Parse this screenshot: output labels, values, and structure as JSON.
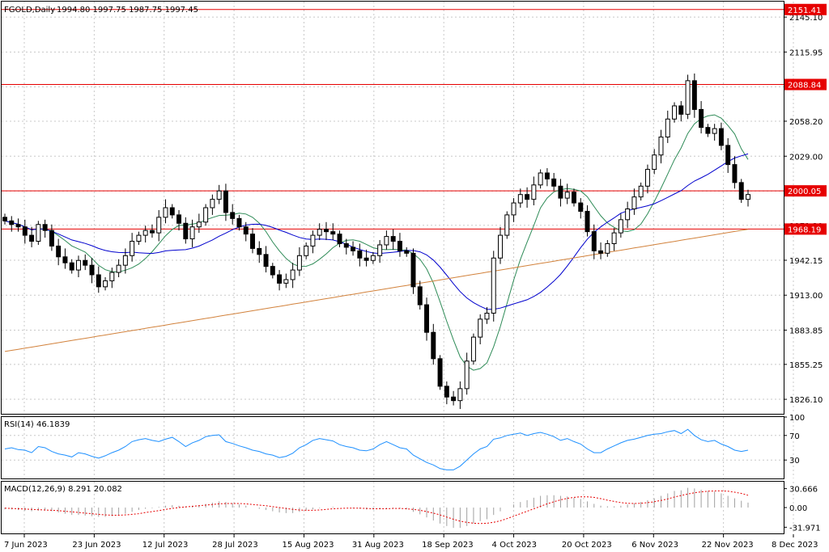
{
  "title": "FGOLD,Daily",
  "ohlc_text": "1994.80 1997.75 1987.75 1997.45",
  "rsi_label": "RSI(14) 46.1839",
  "macd_label": "MACD(12,26,9) 8.291 20.082",
  "colors": {
    "background": "#ffffff",
    "grid": "#c8c8c8",
    "candle": "#000000",
    "level_line": "#e60000",
    "level_tag": "#e60000",
    "ma_fast": "#2e8b57",
    "ma_mid": "#0000cd",
    "ma_slow": "#d2823c",
    "rsi": "#1e90ff",
    "macd_signal": "#e60000",
    "macd_hist": "#a0a0a0"
  },
  "chart_data": [
    {
      "type": "candlestick",
      "panel": "price",
      "title": "FGOLD,Daily",
      "x_labels": [
        "7 Jun 2023",
        "23 Jun 2023",
        "12 Jul 2023",
        "28 Jul 2023",
        "15 Aug 2023",
        "31 Aug 2023",
        "18 Sep 2023",
        "4 Oct 2023",
        "20 Oct 2023",
        "6 Nov 2023",
        "22 Nov 2023",
        "8 Dec 2023"
      ],
      "y_ticks": [
        1826.1,
        1855.25,
        1883.85,
        1913.0,
        1942.15,
        1971.3,
        1999.9,
        2029.0,
        2058.2,
        2086.8,
        2115.95,
        2145.1
      ],
      "ylim": [
        1814,
        2158
      ],
      "levels": [
        2151.41,
        2088.84,
        2000.05,
        1968.19
      ],
      "close": [
        1975,
        1972,
        1970,
        1963,
        1958,
        1972,
        1967,
        1954,
        1945,
        1940,
        1934,
        1942,
        1938,
        1930,
        1920,
        1925,
        1932,
        1938,
        1946,
        1958,
        1963,
        1967,
        1965,
        1978,
        1986,
        1980,
        1973,
        1960,
        1970,
        1974,
        1986,
        1993,
        2000,
        1982,
        1977,
        1970,
        1964,
        1952,
        1947,
        1937,
        1930,
        1923,
        1926,
        1934,
        1946,
        1954,
        1963,
        1968,
        1966,
        1964,
        1956,
        1953,
        1950,
        1944,
        1942,
        1946,
        1955,
        1962,
        1958,
        1950,
        1948,
        1920,
        1905,
        1882,
        1860,
        1837,
        1828,
        1825,
        1835,
        1858,
        1878,
        1893,
        1898,
        1944,
        1963,
        1980,
        1990,
        1997,
        1993,
        2005,
        2015,
        2010,
        2004,
        1994,
        1999,
        1990,
        1983,
        1966,
        1950,
        1948,
        1956,
        1965,
        1976,
        1985,
        1995,
        2004,
        2018,
        2030,
        2045,
        2060,
        2071,
        2064,
        2092,
        2068,
        2053,
        2048,
        2052,
        2038,
        2022,
        2007,
        1993,
        1997
      ]
    },
    {
      "type": "line",
      "panel": "rsi",
      "title": "RSI(14) 46.1839",
      "y_ticks": [
        100,
        70,
        30
      ],
      "ylim": [
        0,
        100
      ],
      "values": [
        48,
        50,
        47,
        46,
        42,
        52,
        50,
        44,
        40,
        38,
        35,
        42,
        40,
        36,
        33,
        37,
        42,
        46,
        52,
        60,
        63,
        65,
        62,
        60,
        64,
        67,
        60,
        52,
        58,
        62,
        68,
        70,
        71,
        60,
        57,
        53,
        50,
        46,
        44,
        40,
        38,
        34,
        36,
        41,
        50,
        55,
        62,
        65,
        63,
        61,
        55,
        52,
        50,
        46,
        45,
        48,
        55,
        60,
        55,
        50,
        48,
        38,
        32,
        26,
        22,
        16,
        14,
        14,
        20,
        30,
        40,
        48,
        52,
        64,
        66,
        70,
        72,
        74,
        70,
        73,
        75,
        72,
        68,
        62,
        65,
        60,
        56,
        48,
        42,
        42,
        48,
        53,
        58,
        62,
        64,
        67,
        70,
        72,
        73,
        76,
        78,
        73,
        80,
        70,
        63,
        60,
        62,
        56,
        52,
        46,
        44,
        46
      ]
    },
    {
      "type": "bar+line",
      "panel": "macd",
      "title": "MACD(12,26,9) 8.291 20.082",
      "y_ticks": [
        30.666,
        0.0,
        -31.971
      ],
      "ylim": [
        -42,
        42
      ],
      "histogram": [
        -3,
        -3,
        -4,
        -5,
        -6,
        -5,
        -5,
        -6,
        -8,
        -10,
        -12,
        -12,
        -13,
        -14,
        -15,
        -15,
        -14,
        -12,
        -10,
        -7,
        -4,
        -2,
        -1,
        1,
        3,
        4,
        3,
        2,
        3,
        4,
        6,
        8,
        10,
        9,
        7,
        5,
        3,
        0,
        -2,
        -4,
        -6,
        -8,
        -9,
        -9,
        -7,
        -5,
        -3,
        -1,
        0,
        1,
        0,
        0,
        -1,
        -2,
        -3,
        -3,
        -2,
        -1,
        -1,
        -2,
        -3,
        -7,
        -11,
        -16,
        -21,
        -26,
        -30,
        -33,
        -33,
        -30,
        -26,
        -22,
        -19,
        -12,
        -6,
        0,
        5,
        9,
        12,
        16,
        19,
        20,
        20,
        19,
        18,
        16,
        14,
        10,
        6,
        3,
        2,
        2,
        3,
        5,
        7,
        9,
        12,
        15,
        19,
        23,
        27,
        28,
        32,
        31,
        29,
        27,
        26,
        23,
        19,
        15,
        11,
        8
      ],
      "signal": [
        -1,
        -1.5,
        -2,
        -2.5,
        -3,
        -3.5,
        -4,
        -4.5,
        -5,
        -6,
        -7,
        -8,
        -9,
        -10,
        -11,
        -12,
        -12.5,
        -12.5,
        -12,
        -11,
        -10,
        -8,
        -6.5,
        -5,
        -3,
        -1.5,
        0,
        1,
        2,
        3,
        4,
        5,
        6,
        6.5,
        6.5,
        6.5,
        6,
        5,
        4,
        3,
        1.5,
        0,
        -1.5,
        -3,
        -4,
        -4.5,
        -4.5,
        -4,
        -3,
        -2,
        -1.5,
        -1,
        -1,
        -1,
        -1.5,
        -2,
        -2,
        -2,
        -1.5,
        -1.5,
        -2,
        -3,
        -4.5,
        -6.5,
        -9,
        -12,
        -15.5,
        -19,
        -22,
        -24,
        -25.5,
        -26,
        -25.5,
        -24,
        -21.5,
        -18,
        -14,
        -10,
        -6,
        -2,
        2,
        6,
        9.5,
        12.5,
        15,
        16.5,
        17.5,
        17.5,
        16.5,
        14.5,
        12,
        10,
        8,
        7,
        6.5,
        7,
        8,
        9.5,
        11.5,
        14,
        17,
        19.5,
        22,
        24,
        25.5,
        26.5,
        27,
        27,
        26.5,
        25,
        23,
        20
      ]
    }
  ]
}
